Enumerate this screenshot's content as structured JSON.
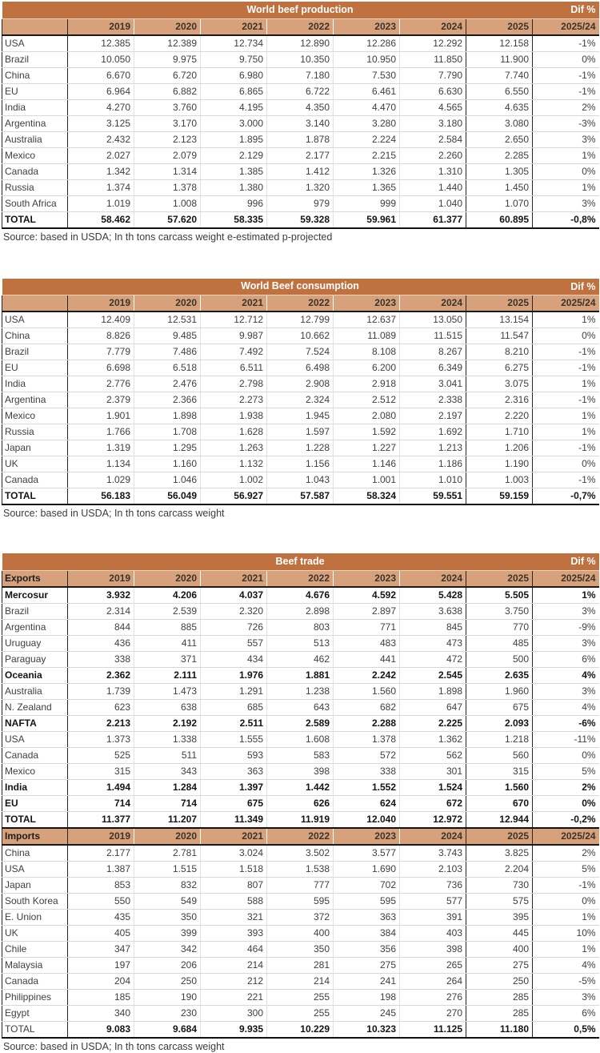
{
  "colors": {
    "title_bar": "#bf7140",
    "header_row": "#d7a27b",
    "strong_border": "#262626",
    "grid_line": "#d9d9d9",
    "title_text": "#ffffff",
    "body_text": "#3f3f3f"
  },
  "years": [
    "2019",
    "2020",
    "2021",
    "2022",
    "2023",
    "2024",
    "2025"
  ],
  "tables": [
    {
      "title": "World beef production",
      "dif_header": "Dif %",
      "dif_subheader": "2025/24",
      "source": "Source: based in USDA; In th tons carcass weight e-estimated p-projected",
      "sections": [
        {
          "header": "",
          "marker": false,
          "rows": [
            {
              "label": "USA",
              "values": [
                "12.385",
                "12.389",
                "12.734",
                "12.890",
                "12.286",
                "12.292",
                "12.158"
              ],
              "dif": "-1%",
              "style": "regular"
            },
            {
              "label": "Brazil",
              "values": [
                "10.050",
                "9.975",
                "9.750",
                "10.350",
                "10.950",
                "11.850",
                "11.900"
              ],
              "dif": "0%",
              "style": "regular"
            },
            {
              "label": "China",
              "values": [
                "6.670",
                "6.720",
                "6.980",
                "7.180",
                "7.530",
                "7.790",
                "7.740"
              ],
              "dif": "-1%",
              "style": "regular"
            },
            {
              "label": "EU",
              "values": [
                "6.964",
                "6.882",
                "6.865",
                "6.722",
                "6.461",
                "6.630",
                "6.550"
              ],
              "dif": "-1%",
              "style": "regular"
            },
            {
              "label": "India",
              "values": [
                "4.270",
                "3.760",
                "4.195",
                "4.350",
                "4.470",
                "4.565",
                "4.635"
              ],
              "dif": "2%",
              "style": "regular"
            },
            {
              "label": "Argentina",
              "values": [
                "3.125",
                "3.170",
                "3.000",
                "3.140",
                "3.280",
                "3.180",
                "3.080"
              ],
              "dif": "-3%",
              "style": "regular"
            },
            {
              "label": "Australia",
              "values": [
                "2.432",
                "2.123",
                "1.895",
                "1.878",
                "2.224",
                "2.584",
                "2.650"
              ],
              "dif": "3%",
              "style": "regular"
            },
            {
              "label": "Mexico",
              "values": [
                "2.027",
                "2.079",
                "2.129",
                "2.177",
                "2.215",
                "2.260",
                "2.285"
              ],
              "dif": "1%",
              "style": "regular"
            },
            {
              "label": "Canada",
              "values": [
                "1.342",
                "1.314",
                "1.385",
                "1.412",
                "1.326",
                "1.310",
                "1.305"
              ],
              "dif": "0%",
              "style": "regular"
            },
            {
              "label": "Russia",
              "values": [
                "1.374",
                "1.378",
                "1.380",
                "1.320",
                "1.365",
                "1.440",
                "1.450"
              ],
              "dif": "1%",
              "style": "regular"
            },
            {
              "label": "South Africa",
              "values": [
                "1.019",
                "1.008",
                "996",
                "979",
                "999",
                "1.040",
                "1.070"
              ],
              "dif": "3%",
              "style": "regular"
            },
            {
              "label": "TOTAL",
              "values": [
                "58.462",
                "57.620",
                "58.335",
                "59.328",
                "59.961",
                "61.377",
                "60.895"
              ],
              "dif": "-0,8%",
              "style": "total"
            }
          ]
        }
      ]
    },
    {
      "title": "World Beef consumption",
      "dif_header": "Dif %",
      "dif_subheader": "2025/24",
      "source": "Source: based in USDA; In th tons carcass weight",
      "sections": [
        {
          "header": "",
          "marker": false,
          "rows": [
            {
              "label": "USA",
              "values": [
                "12.409",
                "12.531",
                "12.712",
                "12.799",
                "12.637",
                "13.050",
                "13.154"
              ],
              "dif": "1%",
              "style": "regular"
            },
            {
              "label": "China",
              "values": [
                "8.826",
                "9.485",
                "9.987",
                "10.662",
                "11.089",
                "11.515",
                "11.547"
              ],
              "dif": "0%",
              "style": "regular"
            },
            {
              "label": "Brazil",
              "values": [
                "7.779",
                "7.486",
                "7.492",
                "7.524",
                "8.108",
                "8.267",
                "8.210"
              ],
              "dif": "-1%",
              "style": "regular"
            },
            {
              "label": "EU",
              "values": [
                "6.698",
                "6.518",
                "6.511",
                "6.498",
                "6.200",
                "6.349",
                "6.275"
              ],
              "dif": "-1%",
              "style": "regular"
            },
            {
              "label": "India",
              "values": [
                "2.776",
                "2.476",
                "2.798",
                "2.908",
                "2.918",
                "3.041",
                "3.075"
              ],
              "dif": "1%",
              "style": "regular"
            },
            {
              "label": "Argentina",
              "values": [
                "2.379",
                "2.366",
                "2.273",
                "2.324",
                "2.512",
                "2.338",
                "2.316"
              ],
              "dif": "-1%",
              "style": "regular"
            },
            {
              "label": "Mexico",
              "values": [
                "1.901",
                "1.898",
                "1.938",
                "1.945",
                "2.080",
                "2.197",
                "2.220"
              ],
              "dif": "1%",
              "style": "regular"
            },
            {
              "label": "Russia",
              "values": [
                "1.766",
                "1.708",
                "1.628",
                "1.597",
                "1.592",
                "1.692",
                "1.710"
              ],
              "dif": "1%",
              "style": "regular"
            },
            {
              "label": "Japan",
              "values": [
                "1.319",
                "1.295",
                "1.263",
                "1.228",
                "1.227",
                "1.213",
                "1.206"
              ],
              "dif": "-1%",
              "style": "regular"
            },
            {
              "label": "UK",
              "values": [
                "1.134",
                "1.160",
                "1.132",
                "1.156",
                "1.146",
                "1.186",
                "1.190"
              ],
              "dif": "0%",
              "style": "regular"
            },
            {
              "label": "Canada",
              "values": [
                "1.029",
                "1.046",
                "1.002",
                "1.043",
                "1.001",
                "1.010",
                "1.003"
              ],
              "dif": "-1%",
              "style": "regular"
            },
            {
              "label": "TOTAL",
              "values": [
                "56.183",
                "56.049",
                "56.927",
                "57.587",
                "58.324",
                "59.551",
                "59.159"
              ],
              "dif": "-0,7%",
              "style": "total"
            }
          ]
        }
      ]
    },
    {
      "title": "Beef trade",
      "dif_header": "Dif %",
      "dif_subheader": "2025/24",
      "source": "Source: based in USDA; In th tons carcass weight",
      "sections": [
        {
          "header": "Exports",
          "marker": false,
          "rows": [
            {
              "label": "Mercosur",
              "values": [
                "3.932",
                "4.206",
                "4.037",
                "4.676",
                "4.592",
                "5.428",
                "5.505"
              ],
              "dif": "1%",
              "style": "group"
            },
            {
              "label": "Brazil",
              "values": [
                "2.314",
                "2.539",
                "2.320",
                "2.898",
                "2.897",
                "3.638",
                "3.750"
              ],
              "dif": "3%",
              "style": "regular"
            },
            {
              "label": "Argentina",
              "values": [
                "844",
                "885",
                "726",
                "803",
                "771",
                "845",
                "770"
              ],
              "dif": "-9%",
              "style": "regular"
            },
            {
              "label": "Uruguay",
              "values": [
                "436",
                "411",
                "557",
                "513",
                "483",
                "473",
                "485"
              ],
              "dif": "3%",
              "style": "regular"
            },
            {
              "label": "Paraguay",
              "values": [
                "338",
                "371",
                "434",
                "462",
                "441",
                "472",
                "500"
              ],
              "dif": "6%",
              "style": "regular"
            },
            {
              "label": "Oceania",
              "values": [
                "2.362",
                "2.111",
                "1.976",
                "1.881",
                "2.242",
                "2.545",
                "2.635"
              ],
              "dif": "4%",
              "style": "group",
              "sep": true
            },
            {
              "label": "Australia",
              "values": [
                "1.739",
                "1.473",
                "1.291",
                "1.238",
                "1.560",
                "1.898",
                "1.960"
              ],
              "dif": "3%",
              "style": "regular"
            },
            {
              "label": "N. Zealand",
              "values": [
                "623",
                "638",
                "685",
                "643",
                "682",
                "647",
                "675"
              ],
              "dif": "4%",
              "style": "regular"
            },
            {
              "label": "NAFTA",
              "values": [
                "2.213",
                "2.192",
                "2.511",
                "2.589",
                "2.288",
                "2.225",
                "2.093"
              ],
              "dif": "-6%",
              "style": "group",
              "sep": true
            },
            {
              "label": "USA",
              "values": [
                "1.373",
                "1.338",
                "1.555",
                "1.608",
                "1.378",
                "1.362",
                "1.218"
              ],
              "dif": "-11%",
              "style": "regular"
            },
            {
              "label": "Canada",
              "values": [
                "525",
                "511",
                "593",
                "583",
                "572",
                "562",
                "560"
              ],
              "dif": "0%",
              "style": "regular"
            },
            {
              "label": "Mexico",
              "values": [
                "315",
                "343",
                "363",
                "398",
                "338",
                "301",
                "315"
              ],
              "dif": "5%",
              "style": "regular"
            },
            {
              "label": "India",
              "values": [
                "1.494",
                "1.284",
                "1.397",
                "1.442",
                "1.552",
                "1.524",
                "1.560"
              ],
              "dif": "2%",
              "style": "group",
              "sep": true
            },
            {
              "label": "EU",
              "values": [
                "714",
                "714",
                "675",
                "626",
                "624",
                "672",
                "670"
              ],
              "dif": "0%",
              "style": "group",
              "sep": true
            },
            {
              "label": "TOTAL",
              "values": [
                "11.377",
                "11.207",
                "11.349",
                "11.919",
                "12.040",
                "12.972",
                "12.944"
              ],
              "dif": "-0,2%",
              "style": "total"
            }
          ]
        },
        {
          "header": "Imports",
          "marker": true,
          "rows": [
            {
              "label": "China",
              "values": [
                "2.177",
                "2.781",
                "3.024",
                "3.502",
                "3.577",
                "3.743",
                "3.825"
              ],
              "dif": "2%",
              "style": "regular"
            },
            {
              "label": "USA",
              "values": [
                "1.387",
                "1.515",
                "1.518",
                "1.538",
                "1.690",
                "2.103",
                "2.204"
              ],
              "dif": "5%",
              "style": "regular"
            },
            {
              "label": "Japan",
              "values": [
                "853",
                "832",
                "807",
                "777",
                "702",
                "736",
                "730"
              ],
              "dif": "-1%",
              "style": "regular"
            },
            {
              "label": "South Korea",
              "values": [
                "550",
                "549",
                "588",
                "595",
                "595",
                "577",
                "575"
              ],
              "dif": "0%",
              "style": "regular"
            },
            {
              "label": "E. Union",
              "values": [
                "435",
                "350",
                "321",
                "372",
                "363",
                "391",
                "395"
              ],
              "dif": "1%",
              "style": "regular"
            },
            {
              "label": "UK",
              "values": [
                "405",
                "399",
                "393",
                "400",
                "384",
                "403",
                "445"
              ],
              "dif": "10%",
              "style": "regular"
            },
            {
              "label": "Chile",
              "values": [
                "347",
                "342",
                "464",
                "350",
                "356",
                "398",
                "400"
              ],
              "dif": "1%",
              "style": "regular"
            },
            {
              "label": "Malaysia",
              "values": [
                "197",
                "206",
                "214",
                "281",
                "275",
                "265",
                "275"
              ],
              "dif": "4%",
              "style": "regular"
            },
            {
              "label": "Canada",
              "values": [
                "204",
                "250",
                "212",
                "214",
                "241",
                "264",
                "250"
              ],
              "dif": "-5%",
              "style": "regular"
            },
            {
              "label": "Philippines",
              "values": [
                "185",
                "190",
                "221",
                "255",
                "198",
                "276",
                "285"
              ],
              "dif": "3%",
              "style": "regular"
            },
            {
              "label": "Egypt",
              "values": [
                "340",
                "230",
                "300",
                "255",
                "245",
                "270",
                "285"
              ],
              "dif": "6%",
              "style": "regular"
            },
            {
              "label": "TOTAL",
              "values": [
                "9.083",
                "9.684",
                "9.935",
                "10.229",
                "10.323",
                "11.125",
                "11.180"
              ],
              "dif": "0,5%",
              "style": "total",
              "plainLabel": true
            }
          ]
        }
      ]
    }
  ]
}
